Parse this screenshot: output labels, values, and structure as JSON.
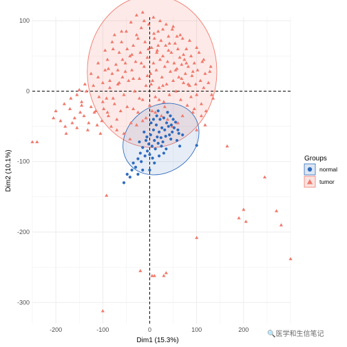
{
  "chart_data": {
    "type": "scatter",
    "xlabel": "Dim1 (15.3%)",
    "ylabel": "Dim2 (10.1%)",
    "xlim": [
      -250,
      300
    ],
    "ylim": [
      -330,
      105
    ],
    "x_ticks": [
      -200,
      -100,
      0,
      100,
      200
    ],
    "y_ticks": [
      -300,
      -200,
      -100,
      0,
      100
    ],
    "grid": true,
    "reference_lines": {
      "x": 0,
      "y": 0,
      "style": "dashed"
    },
    "legend": {
      "title": "Groups",
      "position": "right",
      "entries": [
        {
          "label": "normal",
          "color": "#2E6BBE",
          "marker": "circle"
        },
        {
          "label": "tumor",
          "color": "#F07A6E",
          "marker": "triangle"
        }
      ]
    },
    "series": [
      {
        "name": "normal",
        "color": "#2E6BBE",
        "marker": "circle",
        "ellipse": {
          "cx": 24,
          "cy": -68,
          "rx": 86,
          "ry": 47,
          "angle_deg": 36
        },
        "points": [
          [
            -55,
            -130
          ],
          [
            -42,
            -122
          ],
          [
            -38,
            -112
          ],
          [
            -30,
            -108
          ],
          [
            -25,
            -96
          ],
          [
            -20,
            -88
          ],
          [
            -18,
            -100
          ],
          [
            -15,
            -80
          ],
          [
            -10,
            -92
          ],
          [
            -8,
            -70
          ],
          [
            -5,
            -85
          ],
          [
            -2,
            -75
          ],
          [
            0,
            -90
          ],
          [
            2,
            -62
          ],
          [
            5,
            -78
          ],
          [
            6,
            -95
          ],
          [
            8,
            -55
          ],
          [
            10,
            -70
          ],
          [
            12,
            -82
          ],
          [
            14,
            -48
          ],
          [
            16,
            -65
          ],
          [
            18,
            -74
          ],
          [
            20,
            -58
          ],
          [
            22,
            -40
          ],
          [
            24,
            -66
          ],
          [
            26,
            -52
          ],
          [
            28,
            -72
          ],
          [
            30,
            -38
          ],
          [
            32,
            -55
          ],
          [
            34,
            -64
          ],
          [
            36,
            -45
          ],
          [
            38,
            -30
          ],
          [
            40,
            -50
          ],
          [
            42,
            -62
          ],
          [
            44,
            -35
          ],
          [
            46,
            -48
          ],
          [
            48,
            -58
          ],
          [
            50,
            -40
          ],
          [
            52,
            -52
          ],
          [
            55,
            -44
          ],
          [
            58,
            -70
          ],
          [
            60,
            -55
          ],
          [
            62,
            -60
          ],
          [
            64,
            -78
          ],
          [
            -12,
            -58
          ],
          [
            -6,
            -65
          ],
          [
            3,
            -45
          ],
          [
            15,
            -35
          ],
          [
            25,
            -78
          ],
          [
            35,
            -82
          ],
          [
            45,
            -68
          ],
          [
            -25,
            -118
          ],
          [
            -35,
            -102
          ],
          [
            -15,
            -112
          ],
          [
            10,
            -102
          ],
          [
            0,
            -112
          ],
          [
            20,
            -92
          ],
          [
            30,
            -88
          ],
          [
            70,
            -62
          ],
          [
            100,
            -77
          ],
          [
            -48,
            -118
          ],
          [
            -22,
            -72
          ],
          [
            8,
            -40
          ],
          [
            18,
            -28
          ]
        ]
      },
      {
        "name": "tumor",
        "color": "#F07A6E",
        "marker": "triangle",
        "ellipse": {
          "cx": 5,
          "cy": 28,
          "rx": 138,
          "ry": 108,
          "angle_deg": 0
        },
        "points": [
          [
            -240,
            -72
          ],
          [
            -205,
            -38
          ],
          [
            -200,
            -28
          ],
          [
            -182,
            -18
          ],
          [
            -178,
            -60
          ],
          [
            -168,
            -10
          ],
          [
            -160,
            -38
          ],
          [
            -155,
            -5
          ],
          [
            -150,
            2
          ],
          [
            -145,
            -15
          ],
          [
            -140,
            -35
          ],
          [
            -135,
            0
          ],
          [
            -130,
            -45
          ],
          [
            -125,
            -22
          ],
          [
            -120,
            8
          ],
          [
            -115,
            -28
          ],
          [
            -112,
            -48
          ],
          [
            -110,
            20
          ],
          [
            -108,
            -8
          ],
          [
            -105,
            -60
          ],
          [
            -100,
            12
          ],
          [
            -98,
            -25
          ],
          [
            -95,
            30
          ],
          [
            -92,
            -10
          ],
          [
            -90,
            45
          ],
          [
            -88,
            -35
          ],
          [
            -85,
            5
          ],
          [
            -82,
            -50
          ],
          [
            -80,
            25
          ],
          [
            -78,
            60
          ],
          [
            -75,
            -18
          ],
          [
            -72,
            38
          ],
          [
            -70,
            -40
          ],
          [
            -68,
            10
          ],
          [
            -65,
            55
          ],
          [
            -62,
            -28
          ],
          [
            -60,
            70
          ],
          [
            -58,
            20
          ],
          [
            -55,
            -5
          ],
          [
            -52,
            40
          ],
          [
            -50,
            85
          ],
          [
            -48,
            -22
          ],
          [
            -45,
            15
          ],
          [
            -42,
            50
          ],
          [
            -40,
            -45
          ],
          [
            -38,
            30
          ],
          [
            -35,
            65
          ],
          [
            -32,
            0
          ],
          [
            -30,
            42
          ],
          [
            -28,
            80
          ],
          [
            -25,
            -30
          ],
          [
            -22,
            18
          ],
          [
            -20,
            55
          ],
          [
            -18,
            90
          ],
          [
            -15,
            -12
          ],
          [
            -12,
            35
          ],
          [
            -10,
            70
          ],
          [
            -8,
            8
          ],
          [
            -5,
            48
          ],
          [
            -2,
            95
          ],
          [
            0,
            -20
          ],
          [
            2,
            25
          ],
          [
            4,
            62
          ],
          [
            6,
            15
          ],
          [
            8,
            40
          ],
          [
            10,
            75
          ],
          [
            12,
            -8
          ],
          [
            14,
            30
          ],
          [
            16,
            58
          ],
          [
            18,
            85
          ],
          [
            20,
            5
          ],
          [
            22,
            45
          ],
          [
            24,
            72
          ],
          [
            26,
            20
          ],
          [
            28,
            50
          ],
          [
            30,
            -15
          ],
          [
            32,
            35
          ],
          [
            34,
            65
          ],
          [
            36,
            10
          ],
          [
            38,
            42
          ],
          [
            40,
            78
          ],
          [
            42,
            -5
          ],
          [
            44,
            28
          ],
          [
            46,
            55
          ],
          [
            48,
            88
          ],
          [
            50,
            15
          ],
          [
            52,
            40
          ],
          [
            54,
            68
          ],
          [
            56,
            0
          ],
          [
            58,
            32
          ],
          [
            60,
            60
          ],
          [
            62,
            20
          ],
          [
            64,
            48
          ],
          [
            66,
            -12
          ],
          [
            68,
            38
          ],
          [
            70,
            75
          ],
          [
            72,
            12
          ],
          [
            74,
            45
          ],
          [
            76,
            25
          ],
          [
            78,
            60
          ],
          [
            80,
            -20
          ],
          [
            82,
            35
          ],
          [
            85,
            8
          ],
          [
            88,
            50
          ],
          [
            90,
            22
          ],
          [
            92,
            -30
          ],
          [
            95,
            40
          ],
          [
            98,
            10
          ],
          [
            100,
            -5
          ],
          [
            102,
            30
          ],
          [
            105,
            55
          ],
          [
            108,
            15
          ],
          [
            110,
            -18
          ],
          [
            112,
            42
          ],
          [
            115,
            5
          ],
          [
            118,
            25
          ],
          [
            120,
            -28
          ],
          [
            125,
            12
          ],
          [
            130,
            35
          ],
          [
            135,
            -10
          ],
          [
            -28,
            108
          ],
          [
            -15,
            112
          ],
          [
            8,
            105
          ],
          [
            22,
            100
          ],
          [
            -40,
            98
          ],
          [
            35,
            95
          ],
          [
            -60,
            85
          ],
          [
            50,
            92
          ],
          [
            -80,
            70
          ],
          [
            65,
            80
          ],
          [
            -95,
            58
          ],
          [
            85,
            72
          ],
          [
            -110,
            40
          ],
          [
            100,
            62
          ],
          [
            -125,
            25
          ],
          [
            115,
            45
          ],
          [
            -138,
            10
          ],
          [
            128,
            28
          ],
          [
            -145,
            -20
          ],
          [
            132,
            -5
          ],
          [
            -5,
            22
          ],
          [
            3,
            10
          ],
          [
            -18,
            40
          ],
          [
            15,
            55
          ],
          [
            -35,
            18
          ],
          [
            28,
            8
          ],
          [
            -48,
            60
          ],
          [
            42,
            68
          ],
          [
            -58,
            45
          ],
          [
            55,
            30
          ],
          [
            -68,
            30
          ],
          [
            68,
            18
          ],
          [
            -75,
            80
          ],
          [
            78,
            40
          ],
          [
            -85,
            15
          ],
          [
            88,
            -8
          ],
          [
            -100,
            -15
          ],
          [
            95,
            -25
          ],
          [
            -90,
            -30
          ],
          [
            70,
            -35
          ],
          [
            -70,
            -55
          ],
          [
            60,
            -45
          ],
          [
            -55,
            -60
          ],
          [
            48,
            -50
          ],
          [
            -42,
            -68
          ],
          [
            38,
            -40
          ],
          [
            -28,
            -48
          ],
          [
            25,
            -35
          ],
          [
            -15,
            -42
          ],
          [
            12,
            -30
          ],
          [
            -8,
            -38
          ],
          [
            5,
            -28
          ],
          [
            -22,
            -10
          ],
          [
            20,
            -12
          ],
          [
            -35,
            -25
          ],
          [
            32,
            -22
          ],
          [
            -3,
            60
          ],
          [
            9,
            82
          ],
          [
            -12,
            100
          ],
          [
            18,
            65
          ],
          [
            -25,
            75
          ],
          [
            28,
            88
          ],
          [
            -38,
            52
          ],
          [
            40,
            58
          ],
          [
            -52,
            28
          ],
          [
            58,
            78
          ],
          [
            -65,
            12
          ],
          [
            72,
            52
          ],
          [
            -78,
            -10
          ],
          [
            82,
            10
          ],
          [
            -88,
            32
          ],
          [
            92,
            28
          ],
          [
            -102,
            -42
          ],
          [
            -118,
            -30
          ],
          [
            -132,
            -55
          ],
          [
            110,
            -35
          ],
          [
            118,
            -48
          ],
          [
            100,
            -55
          ],
          [
            -250,
            -72
          ],
          [
            -180,
            -50
          ],
          [
            -165,
            -45
          ],
          [
            -155,
            -52
          ],
          [
            -148,
            -30
          ],
          [
            -190,
            -42
          ],
          [
            -170,
            -25
          ],
          [
            165,
            -78
          ],
          [
            245,
            -122
          ],
          [
            200,
            -168
          ],
          [
            205,
            -185
          ],
          [
            190,
            -180
          ],
          [
            270,
            -170
          ],
          [
            280,
            -190
          ],
          [
            300,
            -238
          ],
          [
            100,
            -208
          ],
          [
            -100,
            -312
          ],
          [
            35,
            -258
          ],
          [
            30,
            -262
          ],
          [
            10,
            -262
          ],
          [
            5,
            -262
          ],
          [
            -20,
            -255
          ],
          [
            -92,
            -148
          ]
        ]
      }
    ]
  },
  "watermark": "🔍医学和生信笔记"
}
